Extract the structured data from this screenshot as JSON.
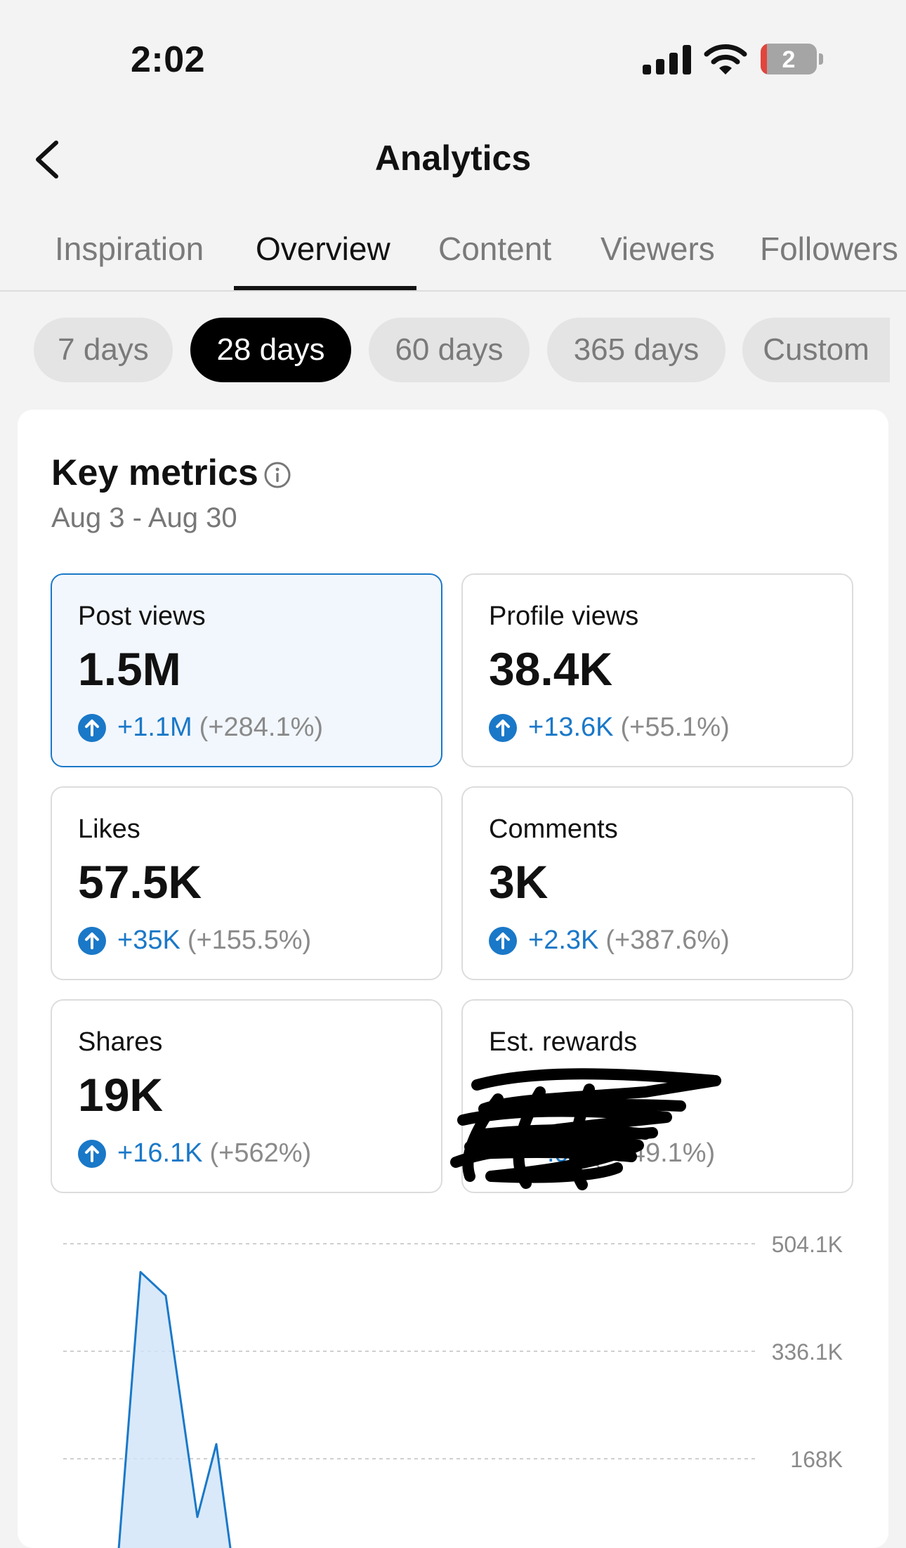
{
  "status": {
    "time": "2:02",
    "battery": "2"
  },
  "header": {
    "title": "Analytics"
  },
  "tabs": [
    "Inspiration",
    "Overview",
    "Content",
    "Viewers",
    "Followers"
  ],
  "ranges": [
    "7 days",
    "28 days",
    "60 days",
    "365 days",
    "Custom"
  ],
  "key_metrics": {
    "title": "Key metrics",
    "date_range": "Aug 3 - Aug 30"
  },
  "metrics": [
    {
      "label": "Post views",
      "value": "1.5M",
      "delta": "+1.1M",
      "pct": "(+284.1%)"
    },
    {
      "label": "Profile views",
      "value": "38.4K",
      "delta": "+13.6K",
      "pct": "(+55.1%)"
    },
    {
      "label": "Likes",
      "value": "57.5K",
      "delta": "+35K",
      "pct": "(+155.5%)"
    },
    {
      "label": "Comments",
      "value": "3K",
      "delta": "+2.3K",
      "pct": "(+387.6%)"
    },
    {
      "label": "Shares",
      "value": "19K",
      "delta": "+16.1K",
      "pct": "(+562%)"
    },
    {
      "label": "Est. rewards",
      "value": "",
      "delta": ".93",
      "pct": "(+149.1%)"
    }
  ],
  "chart_data": {
    "type": "area",
    "y_ticks": [
      "504.1K",
      "336.1K",
      "168K"
    ],
    "ylim": [
      0,
      504100
    ],
    "points": [
      {
        "x": 1,
        "y": 0
      },
      {
        "x": 2,
        "y": 460000
      },
      {
        "x": 3,
        "y": 423000
      },
      {
        "x": 4,
        "y": 77000
      },
      {
        "x": 5,
        "y": 191000
      },
      {
        "x": 6,
        "y": 0
      }
    ],
    "colors": {
      "line": "#1a78c8",
      "fill": "#cfe3f7",
      "grid": "#cfcfcf"
    }
  }
}
